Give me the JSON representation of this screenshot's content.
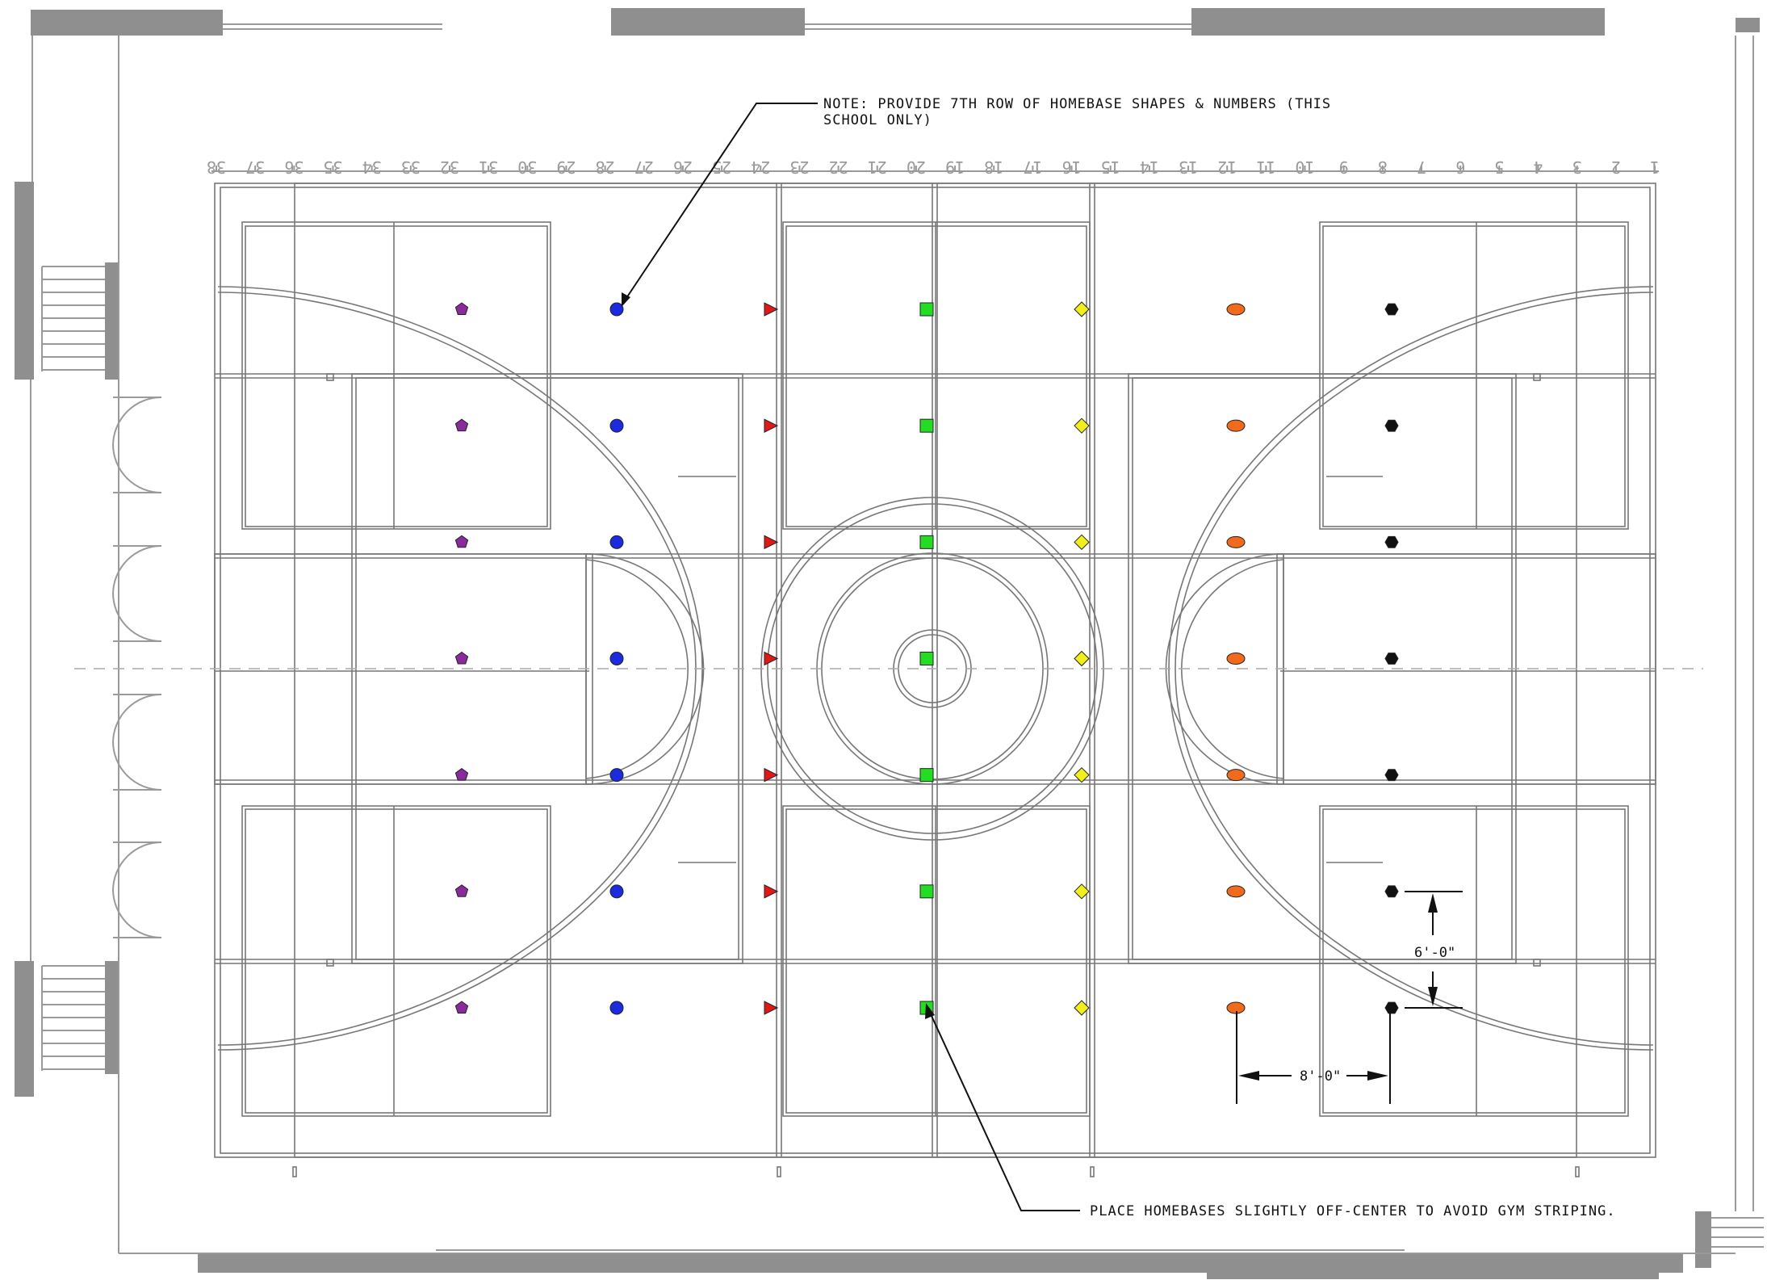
{
  "notes": {
    "top_line1": "NOTE: PROVIDE 7TH ROW OF HOMEBASE SHAPES & NUMBERS (THIS",
    "top_line2": "SCHOOL ONLY)",
    "bottom": "PLACE HOMEBASES SLIGHTLY OFF-CENTER TO AVOID GYM STRIPING."
  },
  "dimensions": {
    "vertical_spacing": "6'-0\"",
    "horizontal_spacing": "8'-0\""
  },
  "column_numbers": [
    "38",
    "37",
    "36",
    "35",
    "34",
    "33",
    "32",
    "31",
    "30",
    "29",
    "28",
    "27",
    "26",
    "25",
    "24",
    "23",
    "22",
    "21",
    "20",
    "19",
    "18",
    "17",
    "16",
    "15",
    "14",
    "13",
    "12",
    "11",
    "10",
    "9",
    "8",
    "7",
    "6",
    "5",
    "4",
    "3",
    "2",
    "1"
  ],
  "homebase_columns": [
    {
      "shape": "pentagon-icon",
      "color": "#8b2a9c"
    },
    {
      "shape": "circle-icon",
      "color": "#1a2be0"
    },
    {
      "shape": "triangle-icon",
      "color": "#e01818"
    },
    {
      "shape": "square-icon",
      "color": "#22dd22"
    },
    {
      "shape": "diamond-icon",
      "color": "#f2ee1c"
    },
    {
      "shape": "oval-icon",
      "color": "#f26a1c"
    },
    {
      "shape": "hexagon-icon",
      "color": "#111111"
    }
  ],
  "homebase_row_count": 7
}
